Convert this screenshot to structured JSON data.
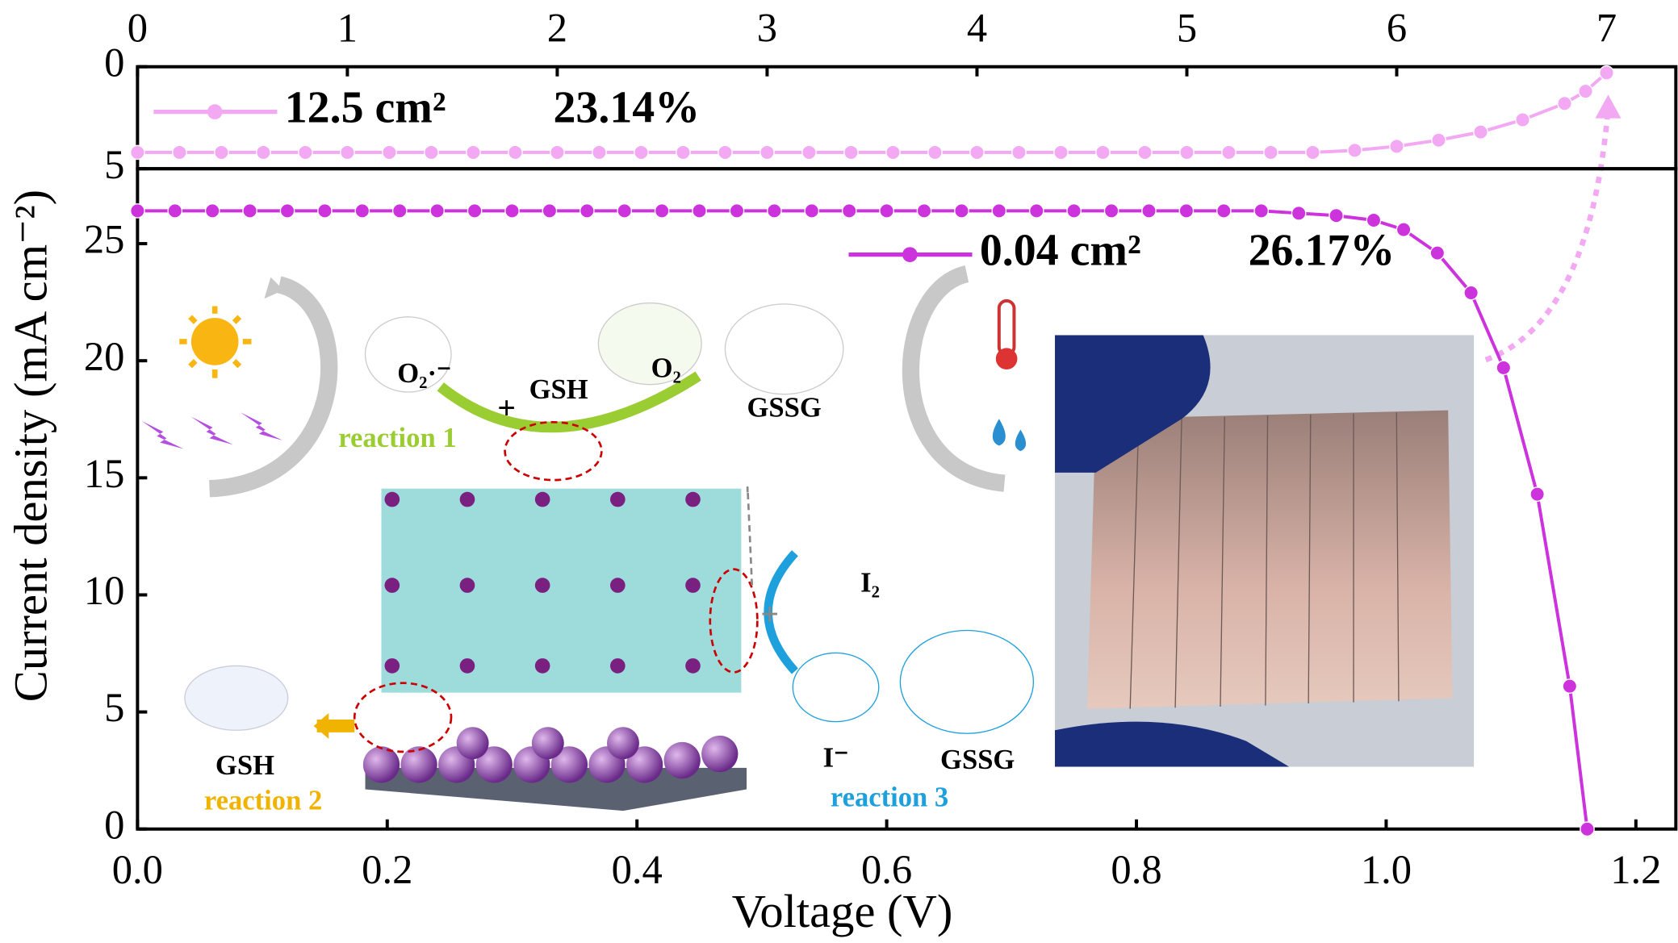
{
  "chart_data": [
    {
      "type": "line",
      "x_axis_position": "top",
      "legend": "upper left",
      "xlim": [
        0,
        7.33
      ],
      "xticks": [
        0,
        1,
        2,
        3,
        4,
        5,
        6,
        7
      ],
      "ylim": [
        5,
        0
      ],
      "yticks": [
        0,
        5
      ],
      "x": [
        0,
        0.2,
        0.4,
        0.6,
        0.8,
        1,
        1.2,
        1.4,
        1.6,
        1.8,
        2,
        2.2,
        2.4,
        2.6,
        2.8,
        3,
        3.2,
        3.4,
        3.6,
        3.8,
        4,
        4.2,
        4.4,
        4.6,
        4.8,
        5,
        5.2,
        5.4,
        5.6,
        5.8,
        6,
        6.2,
        6.4,
        6.6,
        6.8,
        6.9,
        7
      ],
      "series": [
        {
          "name": "12.5 cm²",
          "efficiency": "23.14%",
          "color": "#f2a8f2",
          "values": [
            4.2,
            4.2,
            4.2,
            4.2,
            4.2,
            4.2,
            4.2,
            4.2,
            4.2,
            4.2,
            4.2,
            4.2,
            4.2,
            4.2,
            4.2,
            4.2,
            4.2,
            4.2,
            4.2,
            4.2,
            4.2,
            4.2,
            4.2,
            4.2,
            4.2,
            4.2,
            4.2,
            4.2,
            4.2,
            4.1,
            3.9,
            3.6,
            3.2,
            2.6,
            1.8,
            1.2,
            0.3
          ]
        }
      ]
    },
    {
      "type": "line",
      "x_axis_position": "bottom",
      "legend": "upper center",
      "xlabel": "Voltage (V)",
      "ylabel": "Current density (mA cm⁻²)",
      "xlim": [
        0,
        1.232
      ],
      "xticks": [
        {
          "value": 0,
          "label": "0.0"
        },
        0.2,
        0.4,
        0.6,
        0.8,
        {
          "value": 1,
          "label": "1.0"
        },
        1.2
      ],
      "ylim": [
        0,
        28.2
      ],
      "yticks": [
        0,
        5,
        10,
        15,
        20,
        25
      ],
      "x": [
        0,
        0.03,
        0.06,
        0.09,
        0.12,
        0.15,
        0.18,
        0.21,
        0.24,
        0.27,
        0.3,
        0.33,
        0.36,
        0.39,
        0.42,
        0.45,
        0.48,
        0.51,
        0.54,
        0.57,
        0.6,
        0.63,
        0.66,
        0.69,
        0.72,
        0.75,
        0.78,
        0.81,
        0.84,
        0.87,
        0.9,
        0.93,
        0.96,
        0.99,
        1.014,
        1.041,
        1.068,
        1.094,
        1.121,
        1.147,
        1.161
      ],
      "series": [
        {
          "name": "0.04 cm²",
          "efficiency": "26.17%",
          "color": "#cc33dd",
          "values": [
            26.4,
            26.4,
            26.4,
            26.4,
            26.4,
            26.4,
            26.4,
            26.4,
            26.4,
            26.4,
            26.4,
            26.4,
            26.4,
            26.4,
            26.4,
            26.4,
            26.4,
            26.4,
            26.4,
            26.4,
            26.4,
            26.4,
            26.4,
            26.4,
            26.4,
            26.4,
            26.4,
            26.4,
            26.4,
            26.4,
            26.4,
            26.3,
            26.2,
            26.0,
            25.6,
            24.6,
            22.9,
            19.7,
            14.3,
            6.1,
            0
          ]
        }
      ],
      "annotations": [
        {
          "text": "O₂·⁻",
          "color": "#000000"
        },
        {
          "text": "GSH",
          "color": "#000000"
        },
        {
          "text": "O₂",
          "color": "#000000"
        },
        {
          "text": "GSSG",
          "color": "#000000"
        },
        {
          "text": "reaction 1",
          "color": "#9acd32"
        },
        {
          "text": "I₂",
          "color": "#000000"
        },
        {
          "text": "I⁻",
          "color": "#000000"
        },
        {
          "text": "GSSG",
          "color": "#000000"
        },
        {
          "text": "GSH",
          "color": "#000000"
        },
        {
          "text": "reaction 2",
          "color": "#f0b400"
        },
        {
          "text": "reaction 3",
          "color": "#1ea0dc"
        }
      ]
    }
  ]
}
